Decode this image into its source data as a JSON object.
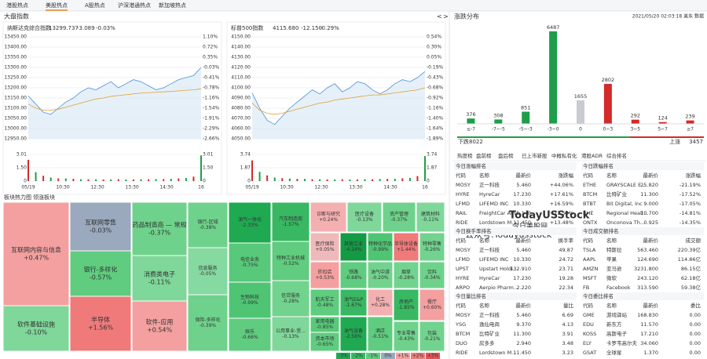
{
  "tabs": [
    "港股热点",
    "美股热点",
    "A股热点",
    "沪深港通热点",
    "新加坡热点"
  ],
  "active_tab": 1,
  "index_title": "大盘指数",
  "nav": [
    "<",
    ">"
  ],
  "indices": [
    {
      "name": "纳斯达克综合指数",
      "price": "13299.737",
      "change": "-3.089",
      "pct": "-0.03%",
      "ylim": [
        12950,
        13450
      ],
      "yticks": [
        {
          "value": 13450,
          "label": "13450.00"
        },
        {
          "value": 13400,
          "label": "13400.00"
        },
        {
          "value": 13350,
          "label": "13350.00"
        },
        {
          "value": 13300,
          "label": "13300.00"
        },
        {
          "value": 13250,
          "label": "13250.00"
        },
        {
          "value": 13200,
          "label": "13200.00"
        },
        {
          "value": 13150,
          "label": "13150.00"
        },
        {
          "value": 13100,
          "label": "13100.00"
        },
        {
          "value": 13050,
          "label": "13050.00"
        },
        {
          "value": 13000,
          "label": "13000.00"
        },
        {
          "value": 12950,
          "label": "12950.00"
        }
      ],
      "pct_ticks": [
        "1.10%",
        "0.72%",
        "0.35%",
        "-0.03%",
        "-0.41%",
        "-0.78%",
        "-1.16%",
        "-1.54%",
        "-1.91%",
        "-2.29%",
        "-2.66%"
      ],
      "prices": [
        13160,
        13120,
        13080,
        13070,
        13100,
        13130,
        13150,
        13180,
        13200,
        13190,
        13210,
        13230,
        13200,
        13220,
        13240,
        13230,
        13210,
        13190,
        13200,
        13220,
        13240,
        13250,
        13260,
        13300
      ],
      "avg": [
        13120,
        13100,
        13090,
        13090,
        13095,
        13105,
        13115,
        13125,
        13135,
        13145,
        13150,
        13158,
        13162,
        13166,
        13170,
        13174,
        13176,
        13178,
        13180,
        13182,
        13185,
        13188,
        13190,
        13195
      ],
      "vol_ticks": [
        {
          "value": 3.01,
          "label": "3.01"
        },
        {
          "value": 1.5,
          "label": "1.50"
        },
        {
          "value": 0,
          "label": "0"
        }
      ],
      "vol_right": [
        "3.01",
        "1.50",
        "0"
      ],
      "volume": [
        2.4,
        1.0,
        0.6,
        0.4,
        0.3,
        0.3,
        0.25,
        0.2,
        0.2,
        0.2,
        0.18,
        0.18,
        0.2,
        0.18,
        0.18,
        0.2,
        0.2,
        0.22,
        0.22,
        0.25,
        0.3,
        0.35,
        0.5,
        2.9
      ]
    },
    {
      "name": "标普500指数",
      "price": "4115.680",
      "change": "-12.150",
      "pct": "-0.29%",
      "ylim": [
        4050,
        4150
      ],
      "yticks": [
        {
          "value": 4150,
          "label": "4150.00"
        },
        {
          "value": 4140,
          "label": "4140.00"
        },
        {
          "value": 4130,
          "label": "4130.00"
        },
        {
          "value": 4120,
          "label": "4120.00"
        },
        {
          "value": 4110,
          "label": "4110.00"
        },
        {
          "value": 4100,
          "label": "4100.00"
        },
        {
          "value": 4090,
          "label": "4090.00"
        },
        {
          "value": 4080,
          "label": "4080.00"
        },
        {
          "value": 4070,
          "label": "4070.00"
        },
        {
          "value": 4060,
          "label": "4060.00"
        },
        {
          "value": 4050,
          "label": "4050.00"
        }
      ],
      "pct_ticks": [
        "0.54%",
        "0.30%",
        "0.05%",
        "-0.19%",
        "-0.43%",
        "-0.68%",
        "-0.92%",
        "-1.16%",
        "-1.40%",
        "-1.64%",
        "-1.89%"
      ],
      "prices": [
        4095,
        4080,
        4068,
        4064,
        4072,
        4080,
        4086,
        4092,
        4098,
        4094,
        4100,
        4104,
        4096,
        4100,
        4106,
        4104,
        4098,
        4094,
        4098,
        4104,
        4108,
        4106,
        4110,
        4116
      ],
      "avg": [
        4085,
        4078,
        4075,
        4074,
        4075,
        4077,
        4079,
        4081,
        4083,
        4085,
        4086,
        4088,
        4089,
        4090,
        4091,
        4092,
        4093,
        4093,
        4094,
        4095,
        4096,
        4097,
        4098,
        4100
      ],
      "vol_ticks": [
        {
          "value": 3.74,
          "label": "3.74"
        },
        {
          "value": 1.87,
          "label": "1.87"
        },
        {
          "value": 0,
          "label": "0"
        }
      ],
      "vol_right": [
        "3.74",
        "1.87",
        "0"
      ],
      "volume": [
        2.9,
        1.3,
        0.8,
        0.5,
        0.4,
        0.35,
        0.3,
        0.3,
        0.25,
        0.25,
        0.22,
        0.22,
        0.25,
        0.22,
        0.22,
        0.25,
        0.25,
        0.28,
        0.3,
        0.32,
        0.38,
        0.45,
        0.7,
        3.5
      ]
    }
  ],
  "time_labels": [
    "05/19",
    "10:30",
    "12:30",
    "13:30",
    "14:30",
    "16"
  ],
  "heatmap_tabs": [
    "板块热力图",
    "领涨板块"
  ],
  "sectors": [
    {
      "name": "互联网内容与信息",
      "change": "+0.47%",
      "color": "#f4a0a0"
    },
    {
      "name": "软件基础设施",
      "change": "-0.10%",
      "color": "#7fd79a"
    },
    {
      "name": "互联网零售",
      "change": "-0.03%",
      "color": "#9aa9bd"
    },
    {
      "name": "银行-多样化",
      "change": "-0.57%",
      "color": "#5fcc7f"
    },
    {
      "name": "半导体",
      "change": "+1.56%",
      "color": "#f07a7a"
    },
    {
      "name": "药品制造商 — 常规",
      "change": "-0.37%",
      "color": "#6fd28c"
    },
    {
      "name": "消费类电子",
      "change": "-0.11%",
      "color": "#7fd79a"
    },
    {
      "name": "软件-应用",
      "change": "+0.54%",
      "color": "#f4a0a0"
    },
    {
      "name": "银行-区域",
      "change": "-0.38%",
      "color": "#6fd28c"
    },
    {
      "name": "信息服务",
      "change": "-0.05%",
      "color": "#86d9a0"
    },
    {
      "name": "保险-多样化",
      "change": "-0.39%",
      "color": "#6fd28c"
    },
    {
      "name": "油气一体化",
      "change": "-2.33%",
      "color": "#1faa52"
    },
    {
      "name": "电信业务",
      "change": "-0.75%",
      "color": "#58c97a"
    },
    {
      "name": "生物科技",
      "change": "-0.99%",
      "color": "#4fc574"
    },
    {
      "name": "娱乐",
      "change": "-0.66%",
      "color": "#5fcc7f"
    },
    {
      "name": "汽车制造商",
      "change": "-1.57%",
      "color": "#38b862"
    },
    {
      "name": "特种工业机械",
      "change": "-0.52%",
      "color": "#5fcc7f"
    },
    {
      "name": "信贷服务",
      "change": "-0.28%",
      "color": "#72d38f"
    },
    {
      "name": "公用事业-受...",
      "change": "-0.13%",
      "color": "#7fd79a"
    },
    {
      "name": "诊断与研究",
      "change": "+0.24%",
      "color": "#f4b0b0"
    },
    {
      "name": "医疗设备",
      "change": "-0.13%",
      "color": "#7fd79a"
    },
    {
      "name": "资产管理",
      "change": "-0.37%",
      "color": "#6fd28c"
    },
    {
      "name": "建筑材料",
      "change": "-0.11%",
      "color": "#7fd79a"
    },
    {
      "name": "医疗保险",
      "change": "+0.05%",
      "color": "#f0b9b9"
    },
    {
      "name": "其他工业",
      "change": "-4.24%",
      "color": "#139a45"
    },
    {
      "name": "特种化学品",
      "change": "-0.99%",
      "color": "#4fc574"
    },
    {
      "name": "半导体设备",
      "change": "+1.44%",
      "color": "#f07a7a"
    },
    {
      "name": "特种零售",
      "change": "-0.26%",
      "color": "#72d38f"
    },
    {
      "name": "折扣店",
      "change": "+0.53%",
      "color": "#f4a0a0"
    },
    {
      "name": "铁路",
      "change": "-0.68%",
      "color": "#5fcc7f"
    },
    {
      "name": "油气中游",
      "change": "-0.20%",
      "color": "#72d38f"
    },
    {
      "name": "烟草",
      "change": "-0.28%",
      "color": "#72d38f"
    },
    {
      "name": "饮料",
      "change": "-0.34%",
      "color": "#6fd28c"
    },
    {
      "name": "航天军工",
      "change": "-0.48%",
      "color": "#5fcc7f"
    },
    {
      "name": "油气E&P",
      "change": "-1.67%",
      "color": "#38b862"
    },
    {
      "name": "化工",
      "change": "+0.28%",
      "color": "#f4b0b0"
    },
    {
      "name": "家用电器",
      "change": "-0.85%",
      "color": "#58c97a"
    },
    {
      "name": "资本市场",
      "change": "-0.65%",
      "color": "#5fcc7f"
    },
    {
      "name": "油气设备",
      "change": "-2.56%",
      "color": "#1faa52"
    },
    {
      "name": "酒店",
      "change": "-0.51%",
      "color": "#5fcc7f"
    },
    {
      "name": "房地产",
      "change": "-1.85%",
      "color": "#38b862"
    },
    {
      "name": "专业零售",
      "change": "-0.43%",
      "color": "#6fd28c"
    },
    {
      "name": "餐厅",
      "change": "+0.60%",
      "color": "#f4a0a0"
    },
    {
      "name": "包装",
      "change": "-0.21%",
      "color": "#72d38f"
    }
  ],
  "legend": [
    {
      "label": "-3%",
      "color": "#1faa52"
    },
    {
      "label": "-2%",
      "color": "#38b862"
    },
    {
      "label": "-1%",
      "color": "#5fcc7f"
    },
    {
      "label": "0%",
      "color": "#9aa9bd"
    },
    {
      "label": "+1%",
      "color": "#f4a0a0"
    },
    {
      "label": "+2%",
      "color": "#f07a7a"
    },
    {
      "label": "+3%",
      "color": "#e05555"
    }
  ],
  "distribution": {
    "title": "涨跌分布",
    "timestamp": "2021/05/20 02:03:18 美东 数据",
    "categories": [
      "≤-7",
      "-7~-5",
      "-5~-3",
      "-3~0",
      "0",
      "0~3",
      "3~5",
      "5~7",
      "≥7"
    ],
    "values": [
      376,
      308,
      851,
      6487,
      1655,
      2802,
      292,
      124,
      239
    ],
    "colors": [
      "#1e9e4a",
      "#1e9e4a",
      "#1e9e4a",
      "#1e9e4a",
      "#c8ccd2",
      "#d42a2a",
      "#d42a2a",
      "#d42a2a",
      "#d42a2a"
    ],
    "down": {
      "label": "下跌",
      "value": 8022
    },
    "up": {
      "label": "上涨",
      "value": 3457
    }
  },
  "watermark": [
    "TodayUSStock",
    "今日美股网",
    "公众号:Todayusstock"
  ],
  "rank_tabs": [
    "热度榜",
    "盘前榜",
    "盘后榜",
    "已上市新股",
    "中概私有化",
    "港股ADR",
    "综合排名"
  ],
  "tables": [
    {
      "title": "今日涨幅排名",
      "columns": [
        "代码",
        "名称",
        "最新价",
        "涨跌幅"
      ],
      "rows": [
        [
          "MOSY",
          "正一科技",
          "5.460",
          "+44.06%"
        ],
        [
          "HYRE",
          "HyreCar",
          "17.230",
          "+17.61%"
        ],
        [
          "LFMD",
          "LIFEMD INC",
          "10.330",
          "+16.59%"
        ],
        [
          "RAIL",
          "FreightCar Am...",
          "5.140",
          "+13.52%"
        ],
        [
          "RIDE",
          "Lordstown M...",
          "11.450",
          "+13.48%"
        ]
      ]
    },
    {
      "title": "今日跌幅排名",
      "columns": [
        "代码",
        "名称",
        "最新价",
        "涨跌幅"
      ],
      "rows": [
        [
          "ETHE",
          "GRAYSCALE E...",
          "25.820",
          "-21.19%"
        ],
        [
          "BTCM",
          "比特矿业",
          "11.300",
          "-17.52%"
        ],
        [
          "BTBT",
          "Bit Digital, Inc",
          "9.000",
          "-17.05%"
        ],
        [
          "RHE",
          "Regional Healt...",
          "10.700",
          "-14.81%"
        ],
        [
          "ONTX",
          "Onconova Th...",
          "0.925",
          "-14.35%"
        ]
      ]
    },
    {
      "title": "今日换手率排名",
      "columns": [
        "代码",
        "名称",
        "最新价",
        "换手率"
      ],
      "rows": [
        [
          "MOSY",
          "正一科技",
          "5.460",
          "49.87"
        ],
        [
          "LFMD",
          "LIFEMD INC",
          "10.330",
          "24.72"
        ],
        [
          "UPST",
          "Upstart Holdi...",
          "132.910",
          "23.71"
        ],
        [
          "HYRE",
          "HyreCar",
          "17.230",
          "19.28"
        ],
        [
          "ARPO",
          "Aerpio Pharm...",
          "2.220",
          "22.34"
        ]
      ]
    },
    {
      "title": "今日成交额排名",
      "columns": [
        "代码",
        "名称",
        "最新价",
        "成交额"
      ],
      "rows": [
        [
          "TSLA",
          "特斯拉",
          "563.460",
          "220.39亿"
        ],
        [
          "AAPL",
          "苹果",
          "124.690",
          "114.86亿"
        ],
        [
          "AMZN",
          "亚马逊",
          "3231.800",
          "86.15亿"
        ],
        [
          "MSFT",
          "微软",
          "243.120",
          "62.18亿"
        ],
        [
          "FB",
          "Facebook",
          "313.590",
          "59.38亿"
        ]
      ]
    },
    {
      "title": "今日量比排名",
      "columns": [
        "代码",
        "名称",
        "最新价",
        "量比"
      ],
      "rows": [
        [
          "MOSY",
          "正一科技",
          "5.460",
          "6.69"
        ],
        [
          "YSG",
          "逸仙电商",
          "9.370",
          "4.13"
        ],
        [
          "BTCM",
          "比特矿业",
          "11.300",
          "3.91"
        ],
        [
          "DUO",
          "房多多",
          "2.940",
          "3.48"
        ],
        [
          "RIDE",
          "Lordstown M...",
          "11.450",
          "3.23"
        ]
      ]
    },
    {
      "title": "今日委比排名",
      "columns": [
        "代码",
        "名称",
        "最新价",
        "委比"
      ],
      "rows": [
        [
          "GME",
          "游戏驿站",
          "168.830",
          "0.00"
        ],
        [
          "EDU",
          "新东方",
          "11.570",
          "0.00"
        ],
        [
          "KOSS",
          "高斯电子",
          "17.210",
          "0.00"
        ],
        [
          "ELY",
          "卡罗韦高尔夫",
          "34.060",
          "0.00"
        ],
        [
          "GSAT",
          "全球星",
          "1.370",
          "0.00"
        ]
      ]
    }
  ]
}
